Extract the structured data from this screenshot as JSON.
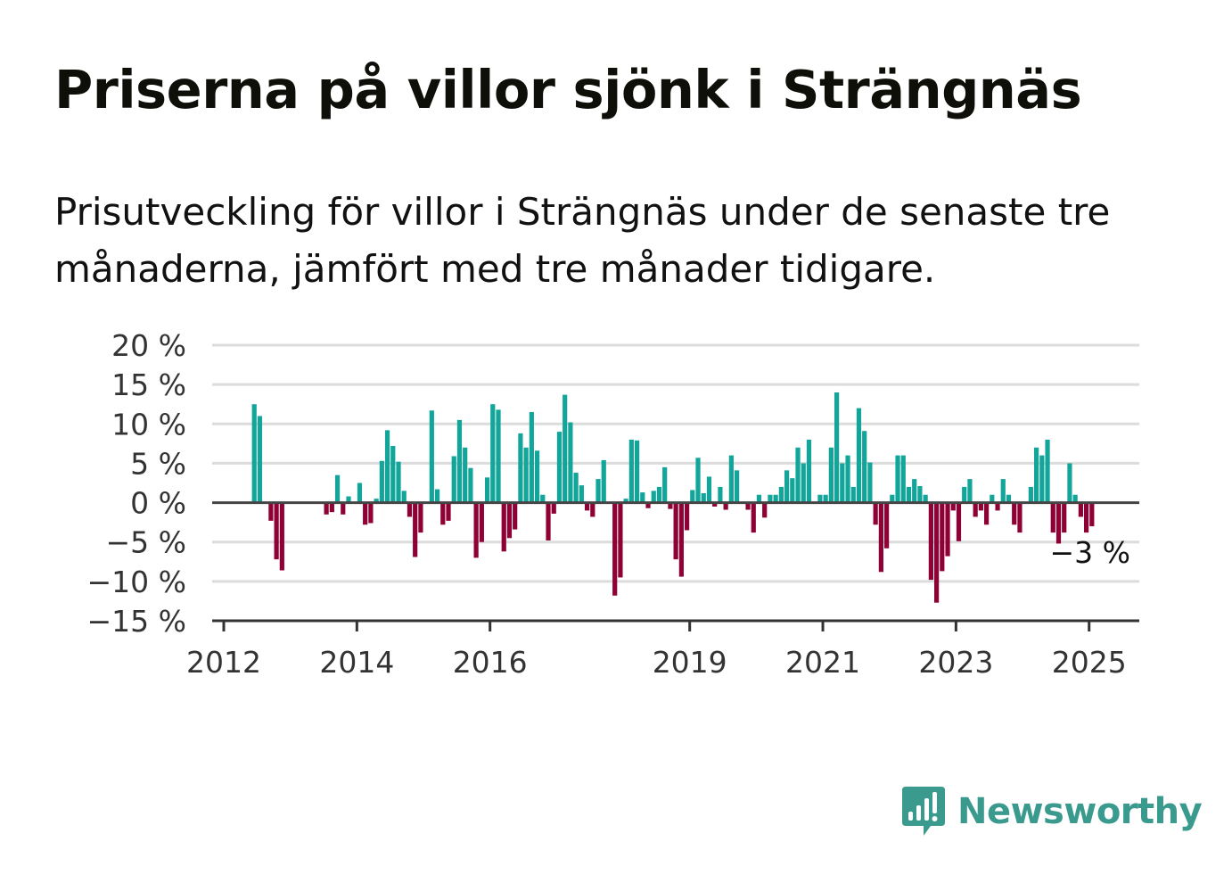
{
  "title": "Priserna på villor sjönk i Strängnäs",
  "subtitle": "Prisutveckling för villor i Strängnäs under de senaste tre månaderna, jämfört med tre månader tidigare.",
  "brand": {
    "name": "Newsworthy",
    "icon": "newsworthy-logo-icon",
    "color": "#3a9a8e"
  },
  "chart_data": {
    "type": "bar",
    "title": "Priserna på villor sjönk i Strängnäs",
    "subtitle": "Prisutveckling för villor i Strängnäs under de senaste tre månaderna, jämfört med tre månader tidigare.",
    "xlabel": "",
    "ylabel": "",
    "x_ticks": [
      "2012",
      "2014",
      "2016",
      "2019",
      "2021",
      "2023",
      "2025"
    ],
    "y_ticks": [
      "20 %",
      "15 %",
      "10 %",
      "5 %",
      "0 %",
      "−5 %",
      "−10 %",
      "−15 %"
    ],
    "ylim": [
      -15,
      20
    ],
    "grid": true,
    "colors": {
      "positive": "#12a59a",
      "negative": "#8f0035"
    },
    "last_value_label": "−3 %",
    "series": [
      {
        "start": "2012-01",
        "frequency": "monthly",
        "values": [
          null,
          null,
          null,
          null,
          null,
          12.5,
          11.0,
          null,
          -2.3,
          -7.2,
          -8.6,
          null,
          null,
          null,
          null,
          null,
          null,
          null,
          -1.5,
          -1.2,
          3.5,
          -1.5,
          0.8,
          null,
          2.5,
          -2.8,
          -2.6,
          0.5,
          5.3,
          9.2,
          7.2,
          5.2,
          1.5,
          -1.8,
          -6.9,
          -3.8,
          null,
          11.7,
          1.7,
          -2.8,
          -2.3,
          5.9,
          10.5,
          7.0,
          4.4,
          -7.0,
          -5.0,
          3.2,
          12.5,
          11.8,
          -6.2,
          -4.5,
          -3.4,
          8.8,
          7.0,
          11.5,
          6.6,
          1.0,
          -4.8,
          -1.4,
          9.0,
          13.7,
          10.2,
          3.8,
          2.2,
          -1.0,
          -1.8,
          3.0,
          5.4,
          null,
          -11.8,
          -9.5,
          0.5,
          8.0,
          7.9,
          1.3,
          -0.7,
          1.5,
          2.0,
          4.5,
          -0.8,
          -7.2,
          -9.4,
          -3.5,
          1.6,
          5.7,
          1.2,
          3.3,
          -0.5,
          2.0,
          -0.9,
          6.0,
          4.1,
          null,
          -0.9,
          -3.8,
          1.0,
          -1.9,
          1.0,
          1.0,
          2.0,
          4.1,
          3.1,
          7.0,
          5.0,
          8.0,
          null,
          1.0,
          1.0,
          7.0,
          14.0,
          5.0,
          6.0,
          2.0,
          12.0,
          9.1,
          5.1,
          -2.8,
          -8.8,
          -5.8,
          1.0,
          6.0,
          6.0,
          2.0,
          3.0,
          2.1,
          1.0,
          -9.8,
          -12.7,
          -8.7,
          -6.8,
          -1.0,
          -4.9,
          2.0,
          3.0,
          -1.8,
          -1.0,
          -2.8,
          1.0,
          -1.0,
          3.0,
          1.0,
          -2.8,
          -3.8,
          null,
          2.0,
          7.0,
          6.0,
          8.0,
          -3.8,
          -5.2,
          -3.8,
          5.0,
          1.0,
          -1.8,
          -3.8,
          -3.0
        ]
      }
    ]
  }
}
